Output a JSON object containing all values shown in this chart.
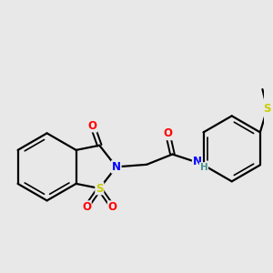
{
  "bg_color": "#e8e8e8",
  "bond_color": "#000000",
  "bond_width": 1.6,
  "atom_colors": {
    "O": "#ff0000",
    "N": "#0000ff",
    "S": "#cccc00",
    "C": "#000000",
    "H": "#4a9090"
  }
}
